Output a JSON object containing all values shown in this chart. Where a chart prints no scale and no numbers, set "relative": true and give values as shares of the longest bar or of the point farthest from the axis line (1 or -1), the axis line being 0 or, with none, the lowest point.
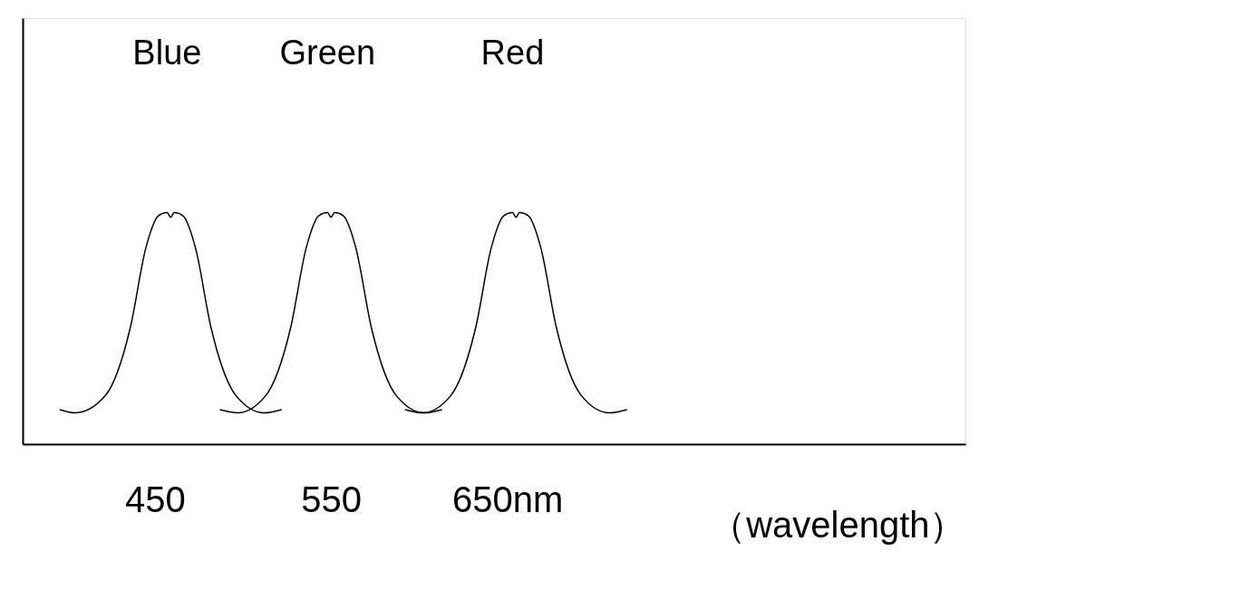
{
  "chart_data": {
    "type": "line",
    "relative": true,
    "xlabel": "（wavelength）",
    "xlim": [
      375,
      910
    ],
    "xticks": [
      450,
      550,
      {
        "value": 650,
        "label": "650nm"
      }
    ],
    "grid": false,
    "marker": "none",
    "line_style": "solid",
    "annotations": [
      "Blue",
      "Green",
      "Red"
    ],
    "series": [
      {
        "color": "#000000",
        "x": [
          396,
          405,
          422,
          436,
          445,
          452,
          457,
          459,
          461,
          466,
          473,
          482,
          496,
          512,
          522
        ],
        "values": [
          0.149,
          0.135,
          0.21,
          0.5,
          0.85,
          0.986,
          1.0,
          0.98,
          1.0,
          0.986,
          0.85,
          0.5,
          0.21,
          0.135,
          0.149
        ]
      },
      {
        "color": "#000000",
        "x": [
          487,
          497,
          513,
          527,
          536,
          543,
          548,
          550,
          552,
          557,
          564,
          573,
          587,
          603,
          613
        ],
        "values": [
          0.149,
          0.135,
          0.21,
          0.5,
          0.85,
          0.986,
          1.0,
          0.98,
          1.0,
          0.986,
          0.85,
          0.5,
          0.21,
          0.135,
          0.149
        ]
      },
      {
        "color": "#000000",
        "x": [
          592,
          602,
          618,
          632,
          641,
          648,
          653,
          655,
          657,
          662,
          669,
          678,
          692,
          708,
          718
        ],
        "values": [
          0.149,
          0.135,
          0.21,
          0.5,
          0.85,
          0.986,
          1.0,
          0.98,
          1.0,
          0.986,
          0.85,
          0.5,
          0.21,
          0.135,
          0.149
        ]
      }
    ]
  }
}
